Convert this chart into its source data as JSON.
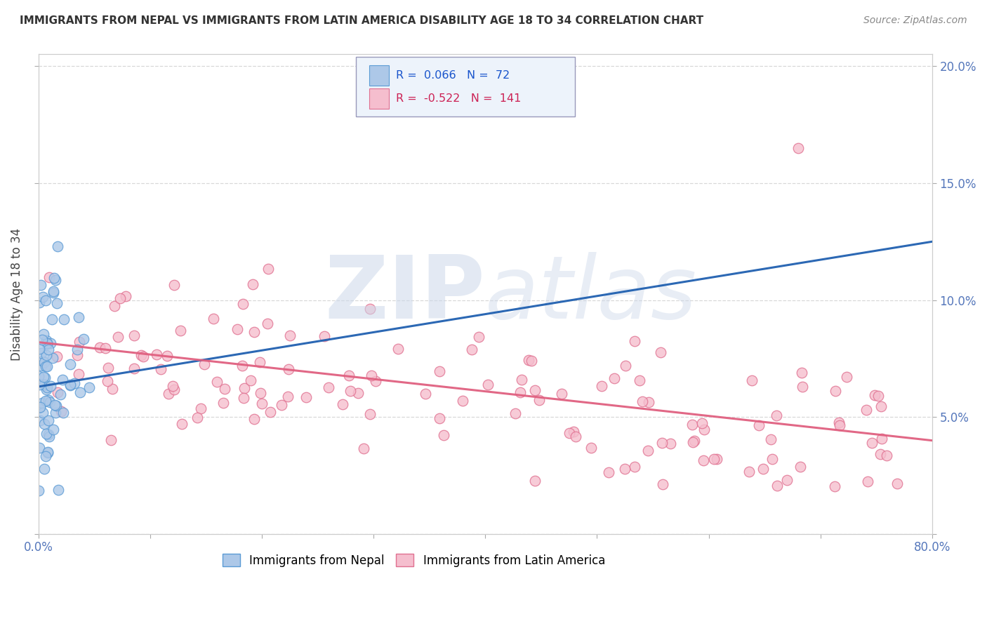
{
  "title": "IMMIGRANTS FROM NEPAL VS IMMIGRANTS FROM LATIN AMERICA DISABILITY AGE 18 TO 34 CORRELATION CHART",
  "source": "Source: ZipAtlas.com",
  "ylabel": "Disability Age 18 to 34",
  "xlabel": "",
  "xlim": [
    0.0,
    0.8
  ],
  "ylim": [
    0.0,
    0.205
  ],
  "xticks": [
    0.0,
    0.1,
    0.2,
    0.3,
    0.4,
    0.5,
    0.6,
    0.7,
    0.8
  ],
  "yticks": [
    0.0,
    0.05,
    0.1,
    0.15,
    0.2
  ],
  "ytick_labels_right": [
    "",
    "5.0%",
    "10.0%",
    "15.0%",
    "20.0%"
  ],
  "nepal_color": "#adc8e8",
  "nepal_edge_color": "#5b9bd5",
  "latin_color": "#f5bece",
  "latin_edge_color": "#e07090",
  "nepal_R": 0.066,
  "nepal_N": 72,
  "latin_R": -0.522,
  "latin_N": 141,
  "nepal_line_color": "#2060b0",
  "latin_line_color": "#e06080",
  "watermark_zip": "ZIP",
  "watermark_atlas": "atlas",
  "background_color": "#ffffff",
  "grid_color": "#d8d8d8",
  "title_color": "#333333",
  "source_color": "#888888",
  "tick_color": "#5577bb"
}
